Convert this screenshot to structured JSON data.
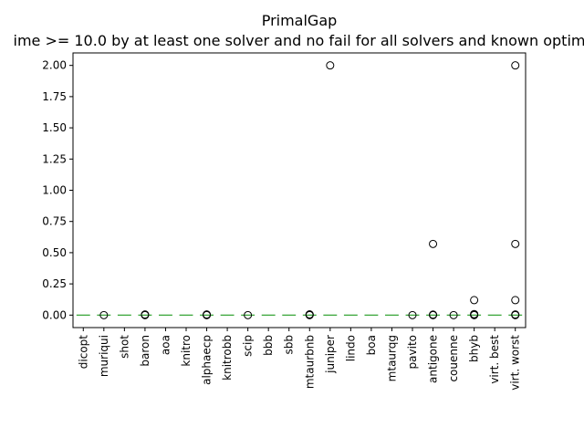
{
  "chart_data": {
    "type": "box",
    "title": "PrimalGap",
    "subtitle": "ime >= 10.0 by at least one solver and no fail for all solvers and known optim",
    "xlabel": "",
    "ylabel": "",
    "ylim": [
      -0.1,
      2.1
    ],
    "yticks": [
      0.0,
      0.25,
      0.5,
      0.75,
      1.0,
      1.25,
      1.5,
      1.75,
      2.0
    ],
    "ytick_labels": [
      "0.00",
      "0.25",
      "0.50",
      "0.75",
      "1.00",
      "1.25",
      "1.50",
      "1.75",
      "2.00"
    ],
    "grid": false,
    "categories": [
      "dicopt",
      "muriqui",
      "shot",
      "baron",
      "aoa",
      "knitro",
      "alphaecp",
      "knitrobb",
      "scip",
      "bbb",
      "sbb",
      "mtaurbnb",
      "juniper",
      "lindo",
      "boa",
      "mtaurqg",
      "pavito",
      "antigone",
      "couenne",
      "bhyb",
      "virt. best",
      "virt. worst"
    ],
    "medians": [
      0,
      0,
      0,
      0,
      0,
      0,
      0,
      0,
      0,
      0,
      0,
      0,
      0,
      0,
      0,
      0,
      0,
      0,
      0,
      0,
      0,
      0
    ],
    "outliers": [
      [],
      [
        0.0
      ],
      [],
      [
        0.0,
        0.005
      ],
      [],
      [],
      [
        0.0,
        0.005
      ],
      [],
      [
        0.0
      ],
      [],
      [],
      [
        0.0,
        0.003,
        0.006
      ],
      [
        2.0
      ],
      [],
      [],
      [],
      [
        0.0
      ],
      [
        0.57,
        0.0,
        0.004
      ],
      [
        0.0
      ],
      [
        0.12,
        0.0,
        0.004,
        0.008
      ],
      [],
      [
        2.0,
        0.57,
        0.12,
        0.0,
        0.005
      ]
    ],
    "median_color": "#2ca02c",
    "outlier_edge_color": "#000000"
  }
}
